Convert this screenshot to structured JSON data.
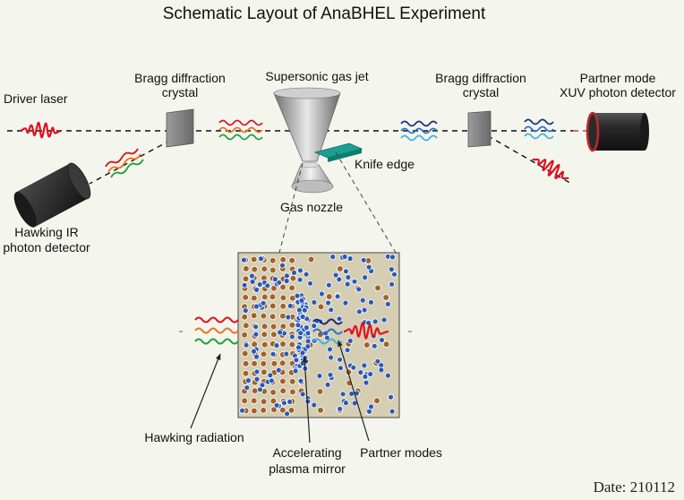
{
  "title": "Schematic Layout of AnaBHEL Experiment",
  "labels": {
    "driver_laser": "Driver laser",
    "bragg_left_line1": "Bragg diffraction",
    "bragg_left_line2": "crystal",
    "gas_jet": "Supersonic gas jet",
    "bragg_right_line1": "Bragg diffraction",
    "bragg_right_line2": "crystal",
    "partner_line1": "Partner mode",
    "partner_line2": "XUV photon detector",
    "knife_edge": "Knife edge",
    "gas_nozzle": "Gas nozzle",
    "hawking_det_line1": "Hawking IR",
    "hawking_det_line2": "photon detector",
    "hawking_radiation": "Hawking radiation",
    "mirror_line1": "Accelerating",
    "mirror_line2": "plasma mirror",
    "partner_modes": "Partner modes"
  },
  "date": "Date: 210112",
  "colors": {
    "background": "#f4f6ee",
    "laser_red": "#e01020",
    "ir_orange": "#f07020",
    "ir_green": "#20a040",
    "xuv_navy": "#1a2a7a",
    "xuv_blue": "#2b6fd0",
    "xuv_cyan": "#40b0e0",
    "detector_rim": "#c0282c",
    "knife_teal": "#1aa090",
    "plasma_bg": "#d6ceb2",
    "ion_brown": "#a0622a",
    "electron_blue": "#2a5ab8"
  },
  "icons": [
    "laser-pulse-icon",
    "detector-cylinder-icon",
    "crystal-plate-icon",
    "gas-cone-icon",
    "knife-edge-icon"
  ]
}
